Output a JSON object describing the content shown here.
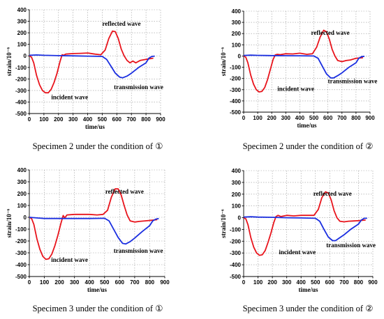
{
  "chart_data": [
    {
      "type": "line",
      "caption": "Specimen 2 under the condition of ①",
      "xlabel": "time/us",
      "ylabel": "strain/10⁻⁶",
      "xlim": [
        0,
        900
      ],
      "ylim": [
        -500,
        400
      ],
      "xticks": [
        0,
        100,
        200,
        300,
        400,
        500,
        600,
        700,
        800,
        900
      ],
      "yticks": [
        -500,
        -400,
        -300,
        -200,
        -100,
        0,
        100,
        200,
        300,
        400
      ],
      "grid": true,
      "annotations": [
        {
          "text": "reflected wave",
          "x": 500,
          "y": 262
        },
        {
          "text": "incident wave",
          "x": 150,
          "y": -375
        },
        {
          "text": "transmission wave",
          "x": 580,
          "y": -288
        }
      ],
      "series": [
        {
          "color": "#e8141c",
          "points": [
            [
              0,
              0
            ],
            [
              15,
              -10
            ],
            [
              30,
              -60
            ],
            [
              50,
              -170
            ],
            [
              70,
              -250
            ],
            [
              90,
              -300
            ],
            [
              110,
              -320
            ],
            [
              130,
              -320
            ],
            [
              150,
              -290
            ],
            [
              170,
              -230
            ],
            [
              190,
              -150
            ],
            [
              210,
              -50
            ],
            [
              225,
              10
            ],
            [
              235,
              5
            ],
            [
              250,
              15
            ],
            [
              300,
              20
            ],
            [
              350,
              22
            ],
            [
              400,
              25
            ],
            [
              450,
              15
            ],
            [
              490,
              10
            ],
            [
              520,
              50
            ],
            [
              545,
              150
            ],
            [
              570,
              215
            ],
            [
              590,
              210
            ],
            [
              610,
              150
            ],
            [
              630,
              60
            ],
            [
              650,
              0
            ],
            [
              670,
              -40
            ],
            [
              690,
              -60
            ],
            [
              710,
              -45
            ],
            [
              730,
              -60
            ],
            [
              760,
              -40
            ],
            [
              800,
              -30
            ],
            [
              850,
              -20
            ]
          ]
        },
        {
          "color": "#1a2ee0",
          "points": [
            [
              0,
              5
            ],
            [
              50,
              8
            ],
            [
              100,
              5
            ],
            [
              200,
              2
            ],
            [
              300,
              0
            ],
            [
              400,
              -2
            ],
            [
              500,
              -5
            ],
            [
              530,
              -30
            ],
            [
              560,
              -90
            ],
            [
              590,
              -150
            ],
            [
              620,
              -185
            ],
            [
              640,
              -190
            ],
            [
              670,
              -175
            ],
            [
              700,
              -150
            ],
            [
              750,
              -100
            ],
            [
              800,
              -60
            ],
            [
              820,
              -20
            ],
            [
              840,
              -5
            ],
            [
              860,
              -2
            ]
          ]
        }
      ]
    },
    {
      "type": "line",
      "caption": "Specimen 2 under the condition of ②",
      "xlabel": "time/us",
      "ylabel": "strain/10⁻⁶",
      "xlim": [
        0,
        900
      ],
      "ylim": [
        -500,
        400
      ],
      "xticks": [
        0,
        100,
        200,
        300,
        400,
        500,
        600,
        700,
        800,
        900
      ],
      "yticks": [
        -500,
        -400,
        -300,
        -200,
        -100,
        0,
        100,
        200,
        300,
        400
      ],
      "grid": true,
      "annotations": [
        {
          "text": "reflected wave",
          "x": 480,
          "y": 190
        },
        {
          "text": "incident wave",
          "x": 240,
          "y": -310
        },
        {
          "text": "transmission wave",
          "x": 600,
          "y": -242
        }
      ],
      "series": [
        {
          "color": "#e8141c",
          "points": [
            [
              0,
              0
            ],
            [
              15,
              -10
            ],
            [
              30,
              -60
            ],
            [
              50,
              -170
            ],
            [
              70,
              -250
            ],
            [
              90,
              -300
            ],
            [
              110,
              -320
            ],
            [
              130,
              -315
            ],
            [
              150,
              -280
            ],
            [
              170,
              -210
            ],
            [
              190,
              -120
            ],
            [
              210,
              -30
            ],
            [
              225,
              10
            ],
            [
              240,
              15
            ],
            [
              260,
              12
            ],
            [
              300,
              20
            ],
            [
              350,
              18
            ],
            [
              400,
              25
            ],
            [
              450,
              15
            ],
            [
              490,
              20
            ],
            [
              520,
              80
            ],
            [
              545,
              170
            ],
            [
              570,
              230
            ],
            [
              590,
              215
            ],
            [
              610,
              150
            ],
            [
              630,
              60
            ],
            [
              650,
              0
            ],
            [
              670,
              -40
            ],
            [
              700,
              -50
            ],
            [
              730,
              -40
            ],
            [
              760,
              -35
            ],
            [
              800,
              -20
            ],
            [
              850,
              -15
            ]
          ]
        },
        {
          "color": "#1a2ee0",
          "points": [
            [
              0,
              5
            ],
            [
              50,
              8
            ],
            [
              100,
              6
            ],
            [
              200,
              4
            ],
            [
              300,
              3
            ],
            [
              400,
              2
            ],
            [
              500,
              0
            ],
            [
              530,
              -20
            ],
            [
              560,
              -90
            ],
            [
              590,
              -160
            ],
            [
              620,
              -195
            ],
            [
              640,
              -195
            ],
            [
              670,
              -175
            ],
            [
              700,
              -150
            ],
            [
              750,
              -100
            ],
            [
              800,
              -60
            ],
            [
              820,
              -20
            ],
            [
              840,
              -5
            ],
            [
              860,
              -2
            ]
          ]
        }
      ]
    },
    {
      "type": "line",
      "caption": "Specimen 3 under the condition of ①",
      "xlabel": "time/us",
      "ylabel": "strain/10⁻⁶",
      "xlim": [
        0,
        900
      ],
      "ylim": [
        -500,
        400
      ],
      "xticks": [
        0,
        100,
        200,
        300,
        400,
        500,
        600,
        700,
        800,
        900
      ],
      "yticks": [
        -500,
        -400,
        -300,
        -200,
        -100,
        0,
        100,
        200,
        300,
        400
      ],
      "grid": true,
      "annotations": [
        {
          "text": "reflected wave",
          "x": 505,
          "y": 200
        },
        {
          "text": "incident wave",
          "x": 145,
          "y": -375
        },
        {
          "text": "transmission wave",
          "x": 560,
          "y": -300
        }
      ],
      "series": [
        {
          "color": "#e8141c",
          "points": [
            [
              0,
              0
            ],
            [
              15,
              -10
            ],
            [
              30,
              -60
            ],
            [
              50,
              -180
            ],
            [
              70,
              -270
            ],
            [
              90,
              -330
            ],
            [
              110,
              -355
            ],
            [
              130,
              -350
            ],
            [
              150,
              -310
            ],
            [
              170,
              -240
            ],
            [
              190,
              -150
            ],
            [
              210,
              -50
            ],
            [
              225,
              15
            ],
            [
              235,
              -5
            ],
            [
              250,
              20
            ],
            [
              300,
              25
            ],
            [
              350,
              25
            ],
            [
              400,
              25
            ],
            [
              450,
              20
            ],
            [
              490,
              25
            ],
            [
              520,
              60
            ],
            [
              545,
              170
            ],
            [
              570,
              240
            ],
            [
              590,
              240
            ],
            [
              610,
              190
            ],
            [
              630,
              100
            ],
            [
              650,
              20
            ],
            [
              670,
              -30
            ],
            [
              700,
              -40
            ],
            [
              730,
              -35
            ],
            [
              770,
              -30
            ],
            [
              810,
              -25
            ],
            [
              850,
              -20
            ]
          ]
        },
        {
          "color": "#1a2ee0",
          "points": [
            [
              0,
              0
            ],
            [
              50,
              -5
            ],
            [
              100,
              -10
            ],
            [
              200,
              -10
            ],
            [
              300,
              -10
            ],
            [
              400,
              -10
            ],
            [
              500,
              -8
            ],
            [
              530,
              -30
            ],
            [
              560,
              -100
            ],
            [
              590,
              -170
            ],
            [
              620,
              -220
            ],
            [
              640,
              -225
            ],
            [
              670,
              -205
            ],
            [
              700,
              -175
            ],
            [
              750,
              -120
            ],
            [
              800,
              -70
            ],
            [
              820,
              -30
            ],
            [
              840,
              -15
            ],
            [
              860,
              -10
            ]
          ]
        }
      ]
    },
    {
      "type": "line",
      "caption": "Specimen 3 under the condition of ②",
      "xlabel": "time/us",
      "ylabel": "strain/10⁻⁶",
      "xlim": [
        0,
        900
      ],
      "ylim": [
        -500,
        400
      ],
      "xticks": [
        0,
        100,
        200,
        300,
        400,
        500,
        600,
        700,
        800,
        900
      ],
      "yticks": [
        -500,
        -400,
        -300,
        -200,
        -100,
        0,
        100,
        200,
        300,
        400
      ],
      "grid": true,
      "annotations": [
        {
          "text": "reflected wave",
          "x": 485,
          "y": 186
        },
        {
          "text": "incident wave",
          "x": 245,
          "y": -310
        },
        {
          "text": "transmission wave",
          "x": 575,
          "y": -250
        }
      ],
      "series": [
        {
          "color": "#e8141c",
          "points": [
            [
              0,
              0
            ],
            [
              15,
              -10
            ],
            [
              30,
              -60
            ],
            [
              50,
              -170
            ],
            [
              70,
              -250
            ],
            [
              90,
              -300
            ],
            [
              110,
              -320
            ],
            [
              130,
              -315
            ],
            [
              150,
              -280
            ],
            [
              170,
              -210
            ],
            [
              190,
              -130
            ],
            [
              210,
              -40
            ],
            [
              225,
              10
            ],
            [
              240,
              20
            ],
            [
              260,
              10
            ],
            [
              300,
              20
            ],
            [
              350,
              15
            ],
            [
              400,
              20
            ],
            [
              450,
              20
            ],
            [
              490,
              20
            ],
            [
              520,
              70
            ],
            [
              545,
              170
            ],
            [
              570,
              220
            ],
            [
              590,
              210
            ],
            [
              610,
              150
            ],
            [
              630,
              60
            ],
            [
              650,
              0
            ],
            [
              670,
              -30
            ],
            [
              700,
              -35
            ],
            [
              730,
              -30
            ],
            [
              760,
              -28
            ],
            [
              800,
              -25
            ],
            [
              850,
              -20
            ]
          ]
        },
        {
          "color": "#1a2ee0",
          "points": [
            [
              0,
              5
            ],
            [
              50,
              8
            ],
            [
              100,
              5
            ],
            [
              200,
              3
            ],
            [
              300,
              0
            ],
            [
              400,
              -2
            ],
            [
              500,
              -5
            ],
            [
              530,
              -30
            ],
            [
              560,
              -100
            ],
            [
              590,
              -165
            ],
            [
              620,
              -195
            ],
            [
              640,
              -195
            ],
            [
              670,
              -170
            ],
            [
              700,
              -145
            ],
            [
              750,
              -95
            ],
            [
              800,
              -55
            ],
            [
              820,
              -20
            ],
            [
              840,
              -5
            ],
            [
              860,
              -5
            ]
          ]
        }
      ]
    }
  ]
}
